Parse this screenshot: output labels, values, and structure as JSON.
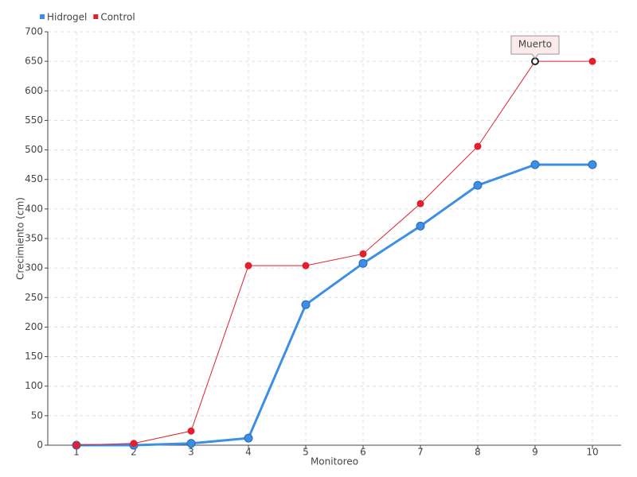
{
  "chart_data": {
    "type": "line",
    "x_label": "Monitoreo",
    "y_label": "Crecimiento (cm)",
    "categories": [
      "1",
      "2",
      "3",
      "4",
      "5",
      "6",
      "7",
      "8",
      "9",
      "10"
    ],
    "series": [
      {
        "name": "Hidrogel",
        "color": "#3d8fe6",
        "values": [
          0,
          0,
          3,
          12,
          238,
          308,
          371,
          440,
          475,
          475
        ]
      },
      {
        "name": "Control",
        "color": "#e0202e",
        "values": [
          0,
          3,
          24,
          304,
          304,
          324,
          409,
          506,
          650,
          650
        ]
      }
    ],
    "annotation": "Muerto",
    "ylim": [
      0,
      700
    ],
    "yticks": [
      0,
      50,
      100,
      150,
      200,
      250,
      300,
      350,
      400,
      450,
      500,
      550,
      600,
      650,
      700
    ],
    "grid": true,
    "legend": "top-left"
  }
}
